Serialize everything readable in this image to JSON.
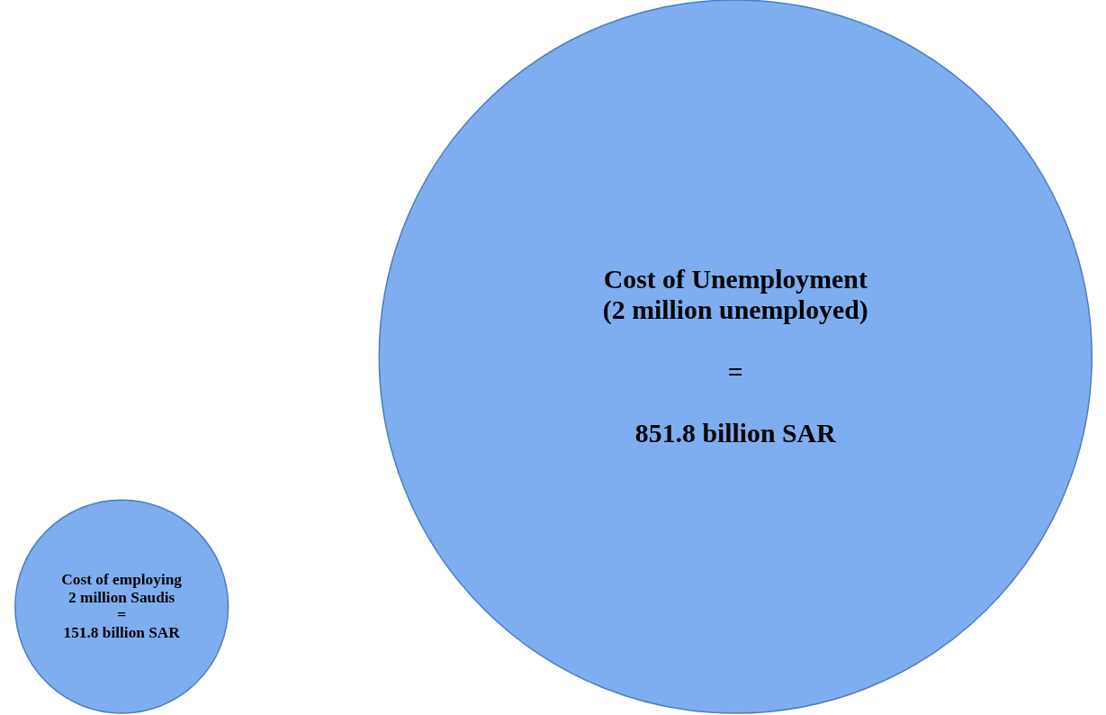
{
  "chart_data": {
    "type": "other",
    "categories": [
      "Cost of employing\n2 million Saudis\n=",
      "Cost of Unemployment\n(2 million unemployed)\n\n=\n"
    ],
    "values": [
      151.8,
      851.8
    ],
    "value_labels": [
      "151.8 billion SAR",
      "851.8 billion SAR"
    ],
    "colors": [
      "#7eaef0",
      "#7eaef0"
    ]
  }
}
